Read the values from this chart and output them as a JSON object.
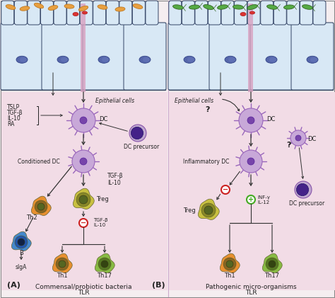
{
  "panel_A_label": "(A)",
  "panel_A_subtitle1": "Commensal/probiotic bacteria",
  "panel_A_subtitle2": "TLR",
  "panel_B_label": "(B)",
  "panel_B_subtitle1": "Pathogenic micro-organisms",
  "panel_B_subtitle2": "TLR",
  "label_TSLP": "TSLP",
  "label_TGFb": "TGF-β",
  "label_IL10": "IL-10",
  "label_RA": "RA",
  "label_DC": "DC",
  "label_DC_precursor": "DC precursor",
  "label_conditioned_DC": "Conditioned DC",
  "label_Treg": "Treg",
  "label_Th2": "Th2",
  "label_Th1": "Th1",
  "label_Th17": "Th17",
  "label_B": "B",
  "label_sIgA": "sIgA",
  "label_Epithelial": "Epithelial cells",
  "label_inflammatory_DC": "Inflammatory DC",
  "colors": {
    "outer_bg": "#f5eef0",
    "panel_pink": "#f2dce6",
    "epi_bg": "#ccddf0",
    "epi_border": "#445566",
    "epi_cell_fill": "#d8e8f5",
    "epi_cell_border": "#334466",
    "nucleus_fill": "#5566aa",
    "nucleus_border": "#334488",
    "bacteria_orange": "#e8a040",
    "bacteria_orange_border": "#c07820",
    "bacteria_green": "#55aa44",
    "bacteria_green_border": "#336622",
    "bacteria_red": "#dd3333",
    "bacteria_red_border": "#aa1111",
    "pink_stripe": "#d8a0c0",
    "DC_fill": "#c8a8d8",
    "DC_border": "#9966bb",
    "DC_spikes": "#aa88cc",
    "DC_nucleus": "#7744aa",
    "DC_precursor_fill": "#c0a8d0",
    "DC_precursor_nucleus": "#442288",
    "Treg_outer": "#c8c040",
    "Treg_mid": "#888828",
    "Treg_inner": "#556622",
    "Th1_outer": "#e89030",
    "Th1_mid": "#886622",
    "Th1_inner": "#556622",
    "Th17_outer": "#88bb44",
    "Th17_mid": "#557722",
    "Th17_inner": "#334411",
    "Th2_outer": "#e89030",
    "Th2_mid": "#886622",
    "Th2_inner": "#556622",
    "B_outer": "#4488cc",
    "B_mid": "#2255aa",
    "B_inner": "#112244",
    "arrow": "#333333",
    "minus_fill": "white",
    "minus_ring": "#cc2222",
    "plus_fill": "white",
    "plus_ring": "#44aa22",
    "text": "#222222",
    "border": "#888888"
  }
}
